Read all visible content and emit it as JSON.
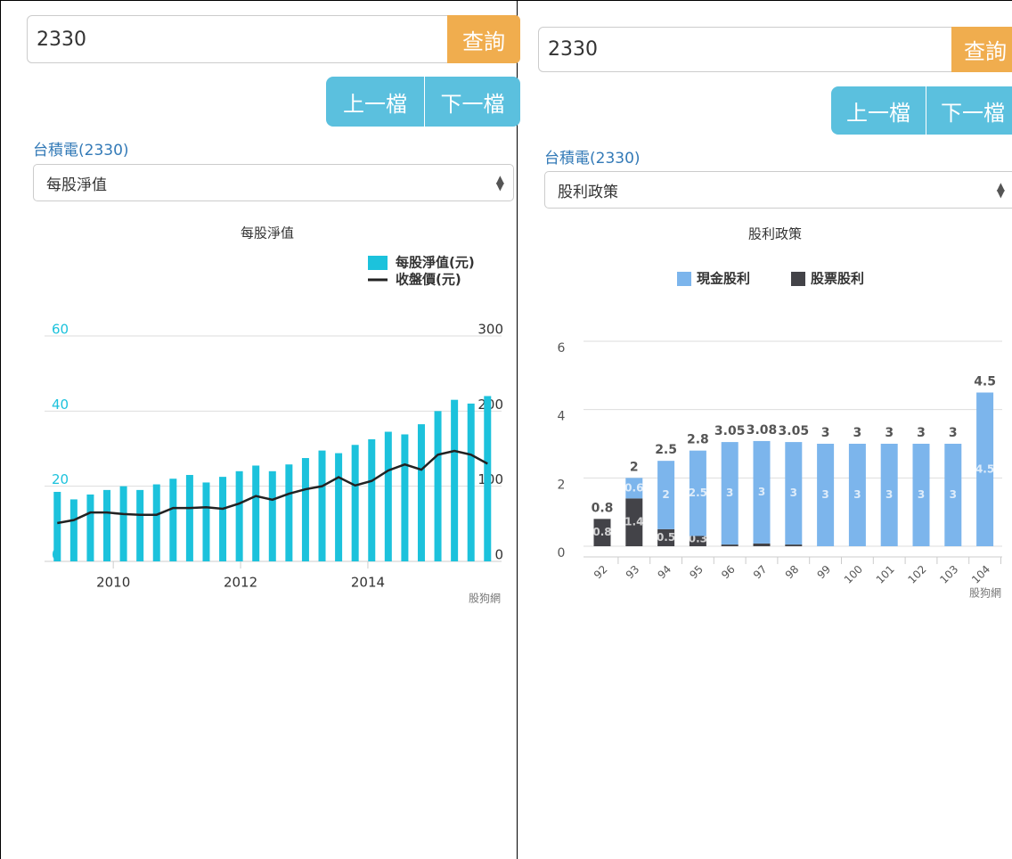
{
  "panels": [
    {
      "search": "2330",
      "search_button": "查詢",
      "prev_button": "上一檔",
      "next_button": "下一檔",
      "stock_name": "台積電(2330)",
      "select": "每股淨值",
      "chart_data": {
        "type": "combo",
        "title": "每股淨值",
        "credit": "股狗網",
        "legend": "top-right",
        "grid": true,
        "x": [
          2009.12,
          2009.38,
          2009.64,
          2009.9,
          2010.16,
          2010.42,
          2010.68,
          2010.94,
          2011.2,
          2011.46,
          2011.72,
          2011.98,
          2012.24,
          2012.5,
          2012.76,
          2013.02,
          2013.28,
          2013.54,
          2013.8,
          2014.06,
          2014.32,
          2014.58,
          2014.84,
          2015.1,
          2015.36,
          2015.62,
          2015.88
        ],
        "xlim": [
          2008.92,
          2016.1
        ],
        "xticks": [
          2010,
          2012,
          2014
        ],
        "ylim": [
          0,
          60
        ],
        "yticks": [
          0,
          20,
          40,
          60
        ],
        "y2lim": [
          0,
          300
        ],
        "y2ticks": [
          0,
          100,
          200,
          300
        ],
        "series": [
          {
            "name": "每股淨值(元)",
            "type": "bar",
            "color": "#1cc2dc",
            "values": [
              18.5,
              16.5,
              17.8,
              19,
              20,
              19,
              20.5,
              22,
              23,
              21,
              22.5,
              24,
              25.5,
              24,
              25.8,
              27.5,
              29.5,
              28.8,
              31,
              32.5,
              34.5,
              33.8,
              36.5,
              40,
              43,
              42,
              44
            ]
          },
          {
            "name": "收盤價(元)",
            "type": "line",
            "axis": "y2",
            "color": "#222222",
            "values": [
              51,
              55,
              65,
              65,
              63,
              62,
              62,
              71,
              71,
              72,
              70,
              77,
              87,
              82,
              90,
              96,
              100,
              112,
              101,
              107,
              121,
              129,
              122,
              142,
              147,
              142,
              130
            ]
          }
        ]
      }
    },
    {
      "search": "2330",
      "search_button": "查詢",
      "prev_button": "上一檔",
      "next_button": "下一檔",
      "stock_name": "台積電(2330)",
      "select": "股利政策",
      "chart_data": {
        "type": "stacked_bar",
        "title": "股利政策",
        "credit": "股狗網",
        "legend": "top",
        "grid": true,
        "categories": [
          "92",
          "93",
          "94",
          "95",
          "96",
          "97",
          "98",
          "99",
          "100",
          "101",
          "102",
          "103",
          "104"
        ],
        "ylim": [
          0,
          6
        ],
        "yticks": [
          0,
          2,
          4,
          6
        ],
        "series": [
          {
            "name": "現金股利",
            "color": "#7cb5ec",
            "values": [
              0,
              0.6,
              2,
              2.5,
              3,
              3,
              3,
              3,
              3,
              3,
              3,
              3,
              4.5
            ]
          },
          {
            "name": "股票股利",
            "color": "#434348",
            "values": [
              0.8,
              1.4,
              0.5,
              0.3,
              0.05,
              0.08,
              0.05,
              0,
              0,
              0,
              0,
              0,
              0
            ]
          }
        ],
        "total_labels": [
          "0.8",
          "2",
          "2.5",
          "2.8",
          "3.05",
          "3.08",
          "3.05",
          "3",
          "3",
          "3",
          "3",
          "3",
          "4.5"
        ]
      }
    }
  ]
}
